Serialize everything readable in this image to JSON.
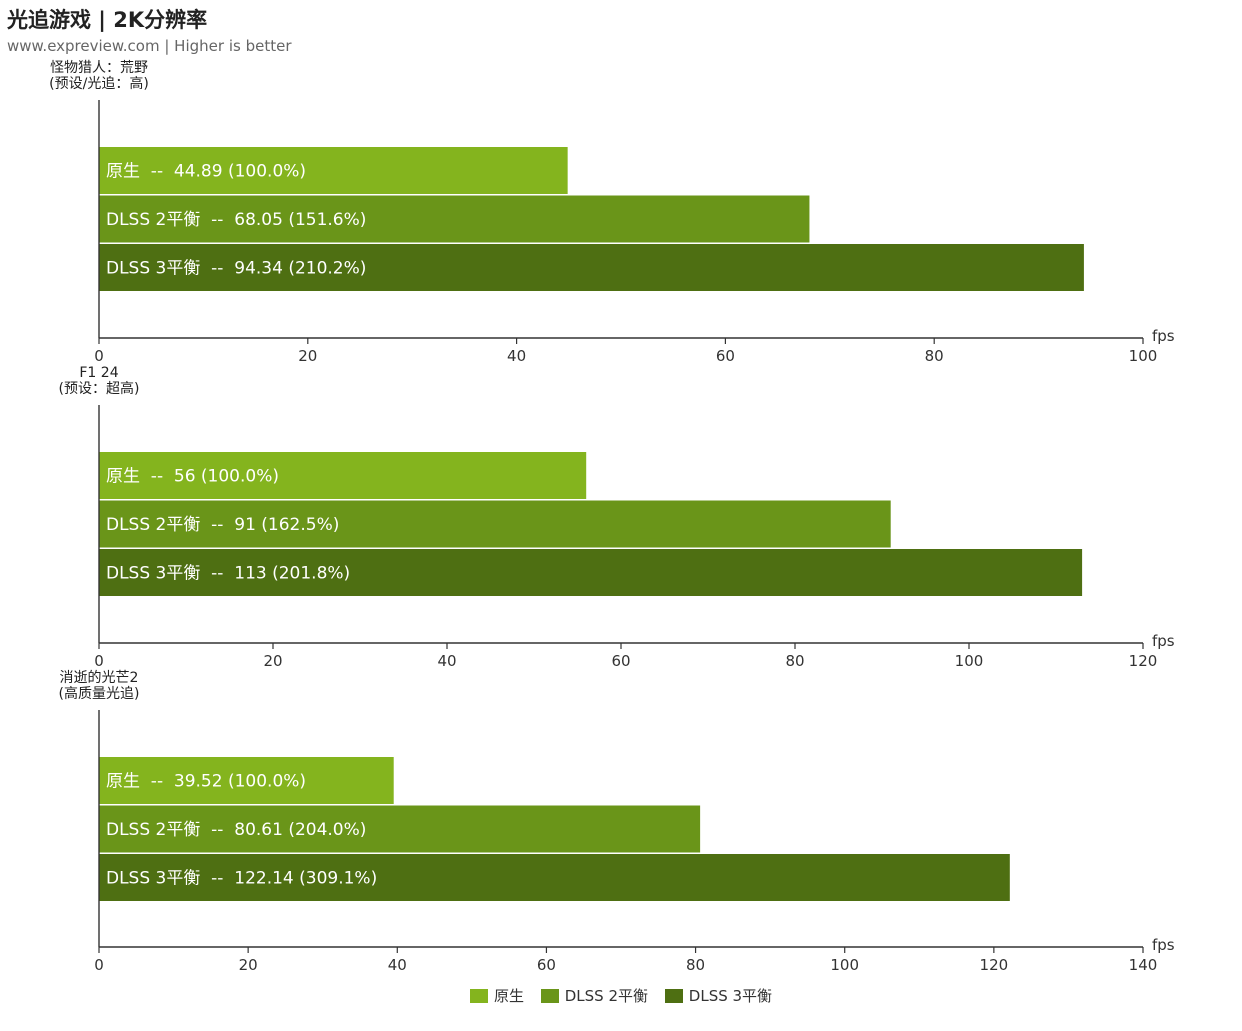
{
  "header": {
    "title": "光追游戏 | 2K分辨率",
    "subtitle": "www.expreview.com | Higher is better"
  },
  "colors": {
    "series": [
      "#84b41e",
      "#6a9519",
      "#4e6f12"
    ],
    "axis": "#333333",
    "label": "#ffffff"
  },
  "chart_data": [
    {
      "type": "bar",
      "orientation": "horizontal",
      "group_label": [
        "怪物猎人：荒野",
        "(预设/光追：高)"
      ],
      "unit": "fps",
      "xlim": [
        0,
        100
      ],
      "ticks": [
        0,
        20,
        40,
        60,
        80,
        100
      ],
      "bars": [
        {
          "series": "原生",
          "value": 44.89,
          "label": "原生  --  44.89 (100.0%)"
        },
        {
          "series": "DLSS 2平衡",
          "value": 68.05,
          "label": "DLSS 2平衡  --  68.05 (151.6%)"
        },
        {
          "series": "DLSS 3平衡",
          "value": 94.34,
          "label": "DLSS 3平衡  --  94.34 (210.2%)"
        }
      ]
    },
    {
      "type": "bar",
      "orientation": "horizontal",
      "group_label": [
        "F1 24",
        "(预设：超高)"
      ],
      "unit": "fps",
      "xlim": [
        0,
        120
      ],
      "ticks": [
        0,
        20,
        40,
        60,
        80,
        100,
        120
      ],
      "bars": [
        {
          "series": "原生",
          "value": 56,
          "label": "原生  --  56 (100.0%)"
        },
        {
          "series": "DLSS 2平衡",
          "value": 91,
          "label": "DLSS 2平衡  --  91 (162.5%)"
        },
        {
          "series": "DLSS 3平衡",
          "value": 113,
          "label": "DLSS 3平衡  --  113 (201.8%)"
        }
      ]
    },
    {
      "type": "bar",
      "orientation": "horizontal",
      "group_label": [
        "消逝的光芒2",
        "(高质量光追)"
      ],
      "unit": "fps",
      "xlim": [
        0,
        140
      ],
      "ticks": [
        0,
        20,
        40,
        60,
        80,
        100,
        120,
        140
      ],
      "bars": [
        {
          "series": "原生",
          "value": 39.52,
          "label": "原生  --  39.52 (100.0%)"
        },
        {
          "series": "DLSS 2平衡",
          "value": 80.61,
          "label": "DLSS 2平衡  --  80.61 (204.0%)"
        },
        {
          "series": "DLSS 3平衡",
          "value": 122.14,
          "label": "DLSS 3平衡  --  122.14 (309.1%)"
        }
      ]
    }
  ],
  "legend": {
    "position": "bottom-center",
    "items": [
      "原生",
      "DLSS 2平衡",
      "DLSS 3平衡"
    ]
  }
}
